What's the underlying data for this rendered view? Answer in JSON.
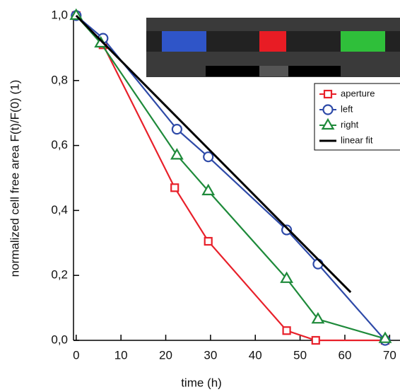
{
  "chart_data": {
    "type": "line",
    "xlabel": "time (h)",
    "ylabel": "normalized cell free area F(t)/F(0) (1)",
    "xlim": [
      -0.6,
      72
    ],
    "ylim": [
      0,
      1
    ],
    "xticks": [
      0,
      10,
      20,
      30,
      40,
      50,
      60,
      70
    ],
    "yticks": [
      {
        "value": 0,
        "label": "0,0"
      },
      {
        "value": 0.2,
        "label": "0,2"
      },
      {
        "value": 0.4,
        "label": "0,4"
      },
      {
        "value": 0.6,
        "label": "0,6"
      },
      {
        "value": 0.8,
        "label": "0,8"
      },
      {
        "value": 1,
        "label": "1,0"
      }
    ],
    "legend": "upper right",
    "series": [
      {
        "name": "aperture",
        "color": "#e8202a",
        "marker": "square",
        "x": [
          0,
          6,
          22,
          29.5,
          47,
          53.5,
          69
        ],
        "values": [
          1.0,
          0.91,
          0.47,
          0.305,
          0.03,
          0.0,
          0.0
        ]
      },
      {
        "name": "left",
        "color": "#2e4aa8",
        "marker": "circle",
        "x": [
          0,
          6,
          22.5,
          29.5,
          47,
          54,
          69
        ],
        "values": [
          1.0,
          0.93,
          0.65,
          0.565,
          0.34,
          0.235,
          0.0
        ]
      },
      {
        "name": "right",
        "color": "#1e8a3a",
        "marker": "triangle",
        "x": [
          0,
          5.5,
          22.5,
          29.5,
          47,
          54,
          69
        ],
        "values": [
          1.0,
          0.915,
          0.57,
          0.46,
          0.19,
          0.065,
          0.005
        ]
      },
      {
        "name": "linear fit",
        "color": "#000000",
        "marker": "none",
        "x": [
          0,
          61.3
        ],
        "values": [
          1.0,
          0.148
        ]
      }
    ]
  }
}
